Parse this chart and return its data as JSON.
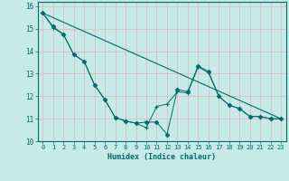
{
  "xlabel": "Humidex (Indice chaleur)",
  "bg_color": "#c5eae7",
  "grid_color": "#ddbcbc",
  "line_color": "#006b6b",
  "xlim": [
    -0.5,
    23.5
  ],
  "ylim": [
    10,
    16.2
  ],
  "xticks": [
    0,
    1,
    2,
    3,
    4,
    5,
    6,
    7,
    8,
    9,
    10,
    11,
    12,
    13,
    14,
    15,
    16,
    17,
    18,
    19,
    20,
    21,
    22,
    23
  ],
  "yticks": [
    10,
    11,
    12,
    13,
    14,
    15,
    16
  ],
  "line1_x": [
    0,
    1,
    2,
    3,
    4,
    5,
    6,
    7,
    8,
    9,
    10,
    11,
    12,
    13,
    14,
    15,
    16,
    17,
    18,
    19,
    20,
    21,
    22,
    23
  ],
  "line1_y": [
    15.7,
    15.1,
    14.75,
    13.85,
    13.55,
    12.5,
    11.85,
    11.05,
    10.9,
    10.8,
    10.85,
    10.85,
    10.3,
    12.3,
    12.2,
    13.35,
    13.1,
    12.0,
    11.6,
    11.45,
    11.1,
    11.1,
    11.0,
    11.0
  ],
  "line2_x": [
    0,
    1,
    2,
    3,
    4,
    5,
    6,
    7,
    8,
    9,
    10,
    11,
    12,
    13,
    14,
    15,
    16,
    17,
    18,
    19,
    20,
    21,
    22,
    23
  ],
  "line2_y": [
    15.7,
    15.05,
    14.75,
    13.85,
    13.55,
    12.5,
    11.85,
    11.05,
    10.9,
    10.8,
    10.6,
    11.55,
    11.65,
    12.2,
    12.15,
    13.3,
    13.05,
    12.0,
    11.6,
    11.45,
    11.1,
    11.1,
    11.0,
    11.0
  ],
  "trend_x": [
    0,
    23
  ],
  "trend_y": [
    15.7,
    11.0
  ]
}
